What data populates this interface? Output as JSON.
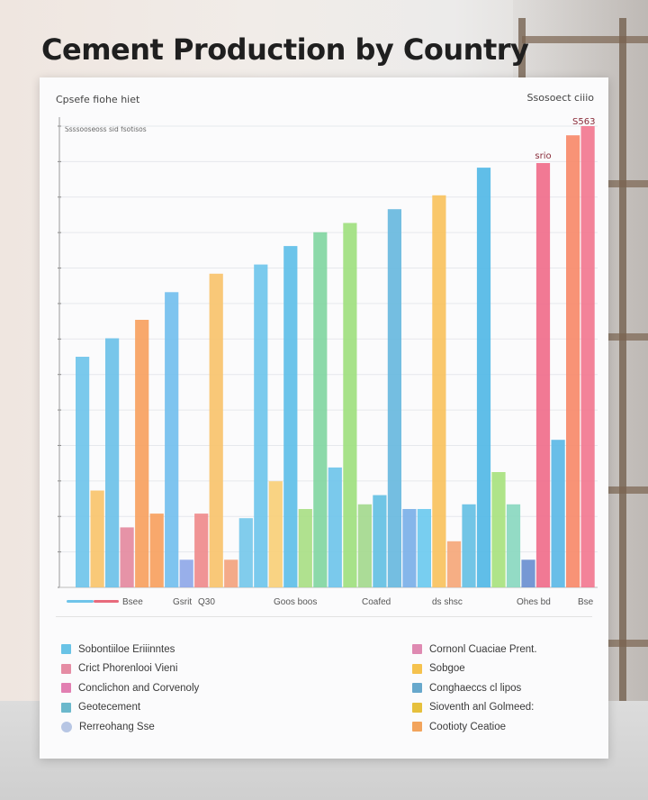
{
  "page": {
    "title": "Cement  Production by Country",
    "card_top_left": "Cpsefe fiohe hiet",
    "card_top_right": "Ssosoect ciiio",
    "card_subtitle": "Ssssooseoss sid fsotisos",
    "peak_label": "S563"
  },
  "chart_data": {
    "type": "bar",
    "title": "Cement  Production by Country",
    "subtitle": "Ssssooseoss sid fsotisos",
    "xlabel": "",
    "ylabel": "",
    "ylim": [
      0,
      100
    ],
    "grid": true,
    "x_ticks": [
      "Bsee",
      "Gsrit",
      "Q30",
      "Goos boos",
      "Coafed",
      "ds shsc",
      "Ohes bd",
      "Bse"
    ],
    "bars": [
      {
        "value": 50,
        "color": "#6fc4ea"
      },
      {
        "value": 21,
        "color": "#f9c46c"
      },
      {
        "value": 54,
        "color": "#6cc1e8"
      },
      {
        "value": 13,
        "color": "#e48aa0"
      },
      {
        "value": 58,
        "color": "#f7a15f"
      },
      {
        "value": 16,
        "color": "#f7a15f"
      },
      {
        "value": 64,
        "color": "#73bfee"
      },
      {
        "value": 6,
        "color": "#8fa8e8"
      },
      {
        "value": 16,
        "color": "#ef8b8c"
      },
      {
        "value": 68,
        "color": "#f8c36c"
      },
      {
        "value": 6,
        "color": "#f3a37f"
      },
      {
        "value": 15,
        "color": "#76c8ea"
      },
      {
        "value": 70,
        "color": "#6fc5ec"
      },
      {
        "value": 23,
        "color": "#f8cf78"
      },
      {
        "value": 74,
        "color": "#5fbfe8"
      },
      {
        "value": 17,
        "color": "#a9de86"
      },
      {
        "value": 77,
        "color": "#82d6a2"
      },
      {
        "value": 26,
        "color": "#6fc4ea"
      },
      {
        "value": 79,
        "color": "#9fe07f"
      },
      {
        "value": 18,
        "color": "#a4d98e"
      },
      {
        "value": 20,
        "color": "#64c0e3"
      },
      {
        "value": 82,
        "color": "#68b9de"
      },
      {
        "value": 17,
        "color": "#7bb0e8"
      },
      {
        "value": 17,
        "color": "#6dcaef"
      },
      {
        "value": 85,
        "color": "#f8c25e"
      },
      {
        "value": 10,
        "color": "#f5a77a"
      },
      {
        "value": 18,
        "color": "#66c0e4"
      },
      {
        "value": 91,
        "color": "#52b8e6"
      },
      {
        "value": 25,
        "color": "#a8e27f"
      },
      {
        "value": 18,
        "color": "#8ad8c0"
      },
      {
        "value": 6,
        "color": "#6a8fd0"
      },
      {
        "value": 92,
        "color": "#f06e8b",
        "label": "srio"
      },
      {
        "value": 32,
        "color": "#5cb8e6"
      },
      {
        "value": 98,
        "color": "#f78a6a"
      },
      {
        "value": 100,
        "color": "#f27890"
      }
    ],
    "legend": {
      "placement": "bottom",
      "left": [
        {
          "name": "Sobontiiloe Eriiinntes",
          "color": "#69c3e6"
        },
        {
          "name": "Crict Phorenlooi Vieni",
          "color": "#e58ca4"
        },
        {
          "name": "Conclichon and Corvenoly",
          "color": "#e27fb2"
        },
        {
          "name": "Geotecement",
          "color": "#6bb8cc"
        },
        {
          "name": "Rerreohang Sse",
          "color": "#b7c6e4"
        }
      ],
      "right": [
        {
          "name": "Cornonl Cuaciae Prent.",
          "color": "#df8ab2"
        },
        {
          "name": "Sobgoe",
          "color": "#f5c24e"
        },
        {
          "name": "Conghaeccs cl lipos",
          "color": "#67a8cc"
        },
        {
          "name": "Sioventh anl Golmeed:",
          "color": "#e6c03c"
        },
        {
          "name": "Cootioty Ceatioe",
          "color": "#f2a45c"
        }
      ]
    }
  }
}
